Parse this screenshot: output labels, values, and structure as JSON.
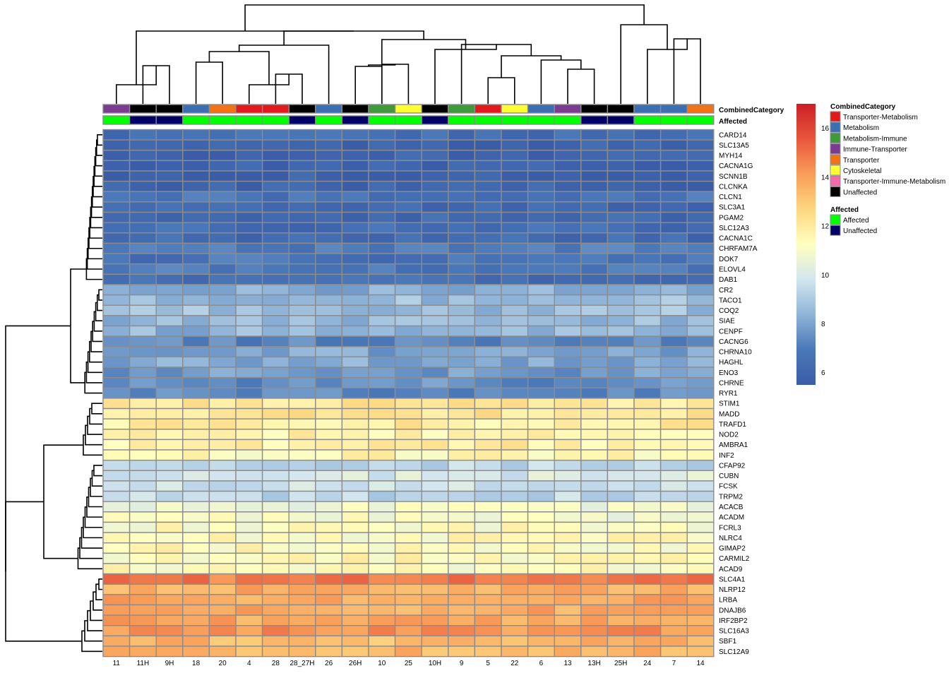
{
  "chart_data": {
    "type": "heatmap",
    "samples": [
      "11",
      "11H",
      "9H",
      "18",
      "20",
      "4",
      "28",
      "28_27H",
      "26",
      "26H",
      "10",
      "25",
      "10H",
      "9",
      "5",
      "22",
      "6",
      "13",
      "13H",
      "25H",
      "24",
      "7",
      "14"
    ],
    "genes": [
      "CARD14",
      "SLC13A5",
      "MYH14",
      "CACNA1G",
      "SCNN1B",
      "CLCNKA",
      "CLCN1",
      "SLC3A1",
      "PGAM2",
      "SLC12A3",
      "CACNA1C",
      "CHRFAM7A",
      "DOK7",
      "ELOVL4",
      "DAB1",
      "CR2",
      "TACO1",
      "COQ2",
      "SIAE",
      "CENPF",
      "CACNG6",
      "CHRNA10",
      "HAGHL",
      "ENO3",
      "CHRNE",
      "RYR1",
      "STIM1",
      "MADD",
      "TRAFD1",
      "NOD2",
      "AMBRA1",
      "INF2",
      "CFAP92",
      "CUBN",
      "FCSK",
      "TRPM2",
      "ACACB",
      "ACADM",
      "FCRL3",
      "NLRC4",
      "GIMAP2",
      "CARMIL2",
      "ACAD9",
      "SLC4A1",
      "NLRP12",
      "LRBA",
      "DNAJB6",
      "IRF2BP2",
      "SLC16A3",
      "SBF1",
      "SLC12A9"
    ],
    "gene_base_values": [
      6.4,
      5.8,
      5.8,
      5.8,
      5.8,
      5.8,
      6.6,
      6.2,
      6.2,
      6.4,
      6.3,
      7.0,
      6.7,
      6.8,
      6.4,
      8.2,
      8.6,
      8.7,
      8.5,
      8.4,
      7.2,
      8.0,
      8.1,
      7.8,
      7.5,
      7.4,
      12.0,
      12.2,
      11.9,
      11.7,
      11.8,
      11.5,
      9.5,
      10.0,
      9.8,
      9.4,
      10.8,
      10.9,
      11.2,
      11.3,
      11.3,
      11.4,
      11.3,
      14.8,
      13.7,
      13.9,
      13.8,
      13.8,
      14.3,
      13.4,
      13.5
    ],
    "annotations": {
      "CombinedCategory": [
        "Immune-Transporter",
        "Unaffected",
        "Unaffected",
        "Metabolism",
        "Transporter",
        "Transporter-Metabolism",
        "Transporter-Metabolism",
        "Unaffected",
        "Metabolism",
        "Unaffected",
        "Metabolism-Immune",
        "Cytoskeletal",
        "Unaffected",
        "Metabolism-Immune",
        "Transporter-Metabolism",
        "Cytoskeletal",
        "Metabolism",
        "Immune-Transporter",
        "Unaffected",
        "Unaffected",
        "Metabolism",
        "Metabolism",
        "Transporter"
      ],
      "Affected": [
        "Affected",
        "Unaffected",
        "Unaffected",
        "Affected",
        "Affected",
        "Affected",
        "Affected",
        "Unaffected",
        "Affected",
        "Unaffected",
        "Affected",
        "Affected",
        "Unaffected",
        "Affected",
        "Affected",
        "Affected",
        "Affected",
        "Affected",
        "Unaffected",
        "Unaffected",
        "Affected",
        "Affected",
        "Affected"
      ]
    },
    "annotation_labels": [
      "CombinedCategory",
      "Affected"
    ],
    "legend": {
      "CombinedCategory": {
        "title": "CombinedCategory",
        "items": [
          {
            "label": "Transporter-Metabolism",
            "color": "#e31a1c"
          },
          {
            "label": "Metabolism",
            "color": "#3a6fb5"
          },
          {
            "label": "Metabolism-Immune",
            "color": "#3f9a3a"
          },
          {
            "label": "Immune-Transporter",
            "color": "#7b3b91"
          },
          {
            "label": "Transporter",
            "color": "#f47216"
          },
          {
            "label": "Cytoskeletal",
            "color": "#ffff33"
          },
          {
            "label": "Transporter-Immune-Metabolism",
            "color": "#f26aa8"
          },
          {
            "label": "Unaffected",
            "color": "#000000"
          }
        ]
      },
      "Affected": {
        "title": "Affected",
        "items": [
          {
            "label": "Affected",
            "color": "#00ff00"
          },
          {
            "label": "Unaffected",
            "color": "#000066"
          }
        ]
      }
    },
    "color_scale": {
      "min": 5.5,
      "max": 17,
      "ticks": [
        6,
        8,
        10,
        12,
        14,
        16
      ],
      "colors": [
        "#3b5da8",
        "#4a78b8",
        "#8fb4d8",
        "#d3e6ef",
        "#ffffbf",
        "#fdd680",
        "#f99d59",
        "#e8573c",
        "#cc1f26"
      ]
    }
  }
}
